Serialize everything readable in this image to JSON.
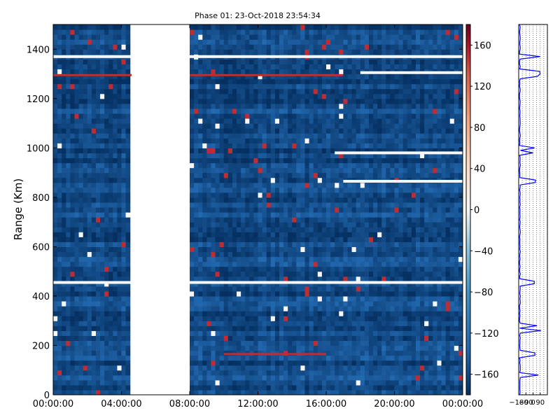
{
  "chart_data": [
    {
      "type": "heatmap",
      "title": "Phase 01: 23-Oct-2018 23:54:34",
      "xlabel": "",
      "ylabel": "Range (Km)",
      "x_ticks": [
        "00:00:00",
        "04:00:00",
        "08:00:00",
        "12:00:00",
        "16:00:00",
        "20:00:00",
        "00:00:00"
      ],
      "y_ticks": [
        "0",
        "200",
        "400",
        "600",
        "800",
        "1000",
        "1200",
        "1400"
      ],
      "xlim_hours": [
        0,
        24
      ],
      "ylim": [
        0,
        1500
      ],
      "gap_hours": [
        4.6,
        8.0
      ],
      "colorbar": {
        "ticks": [
          "160",
          "120",
          "80",
          "40",
          "0",
          "−40",
          "−80",
          "−120",
          "−160"
        ],
        "range": [
          -180,
          180
        ],
        "colormap": "RdBu_r"
      },
      "data_summary": {
        "background_value": -160,
        "white_bands_km": [
          {
            "range_km": 1370,
            "start_h": 0,
            "end_h": 24
          },
          {
            "range_km": 455,
            "start_h": 0,
            "end_h": 24
          },
          {
            "range_km": 980,
            "start_h": 16.5,
            "end_h": 24
          },
          {
            "range_km": 865,
            "start_h": 17,
            "end_h": 24
          },
          {
            "range_km": 1305,
            "start_h": 18,
            "end_h": 24
          }
        ],
        "red_bands_km": [
          {
            "range_km": 1295,
            "start_h": 0,
            "end_h": 17
          },
          {
            "range_km": 165,
            "start_h": 10,
            "end_h": 16
          }
        ]
      }
    },
    {
      "type": "line",
      "orientation": "vertical-profile",
      "x_ticks": [
        "−180",
        "−90",
        "0",
        "90"
      ],
      "xlim": [
        -180,
        180
      ],
      "ylim": [
        0,
        1500
      ],
      "grid": true
    }
  ]
}
